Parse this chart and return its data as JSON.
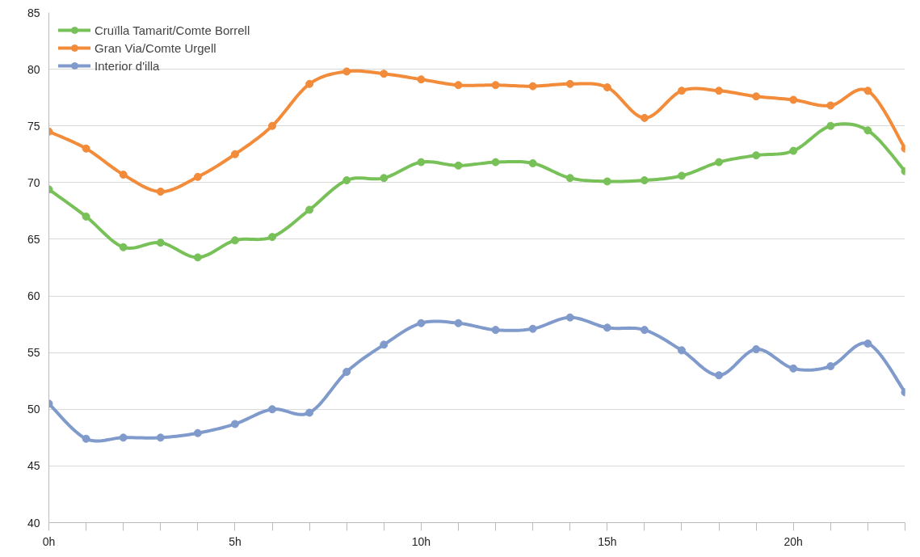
{
  "chart_data": {
    "type": "line",
    "x": [
      0,
      1,
      2,
      3,
      4,
      5,
      6,
      7,
      8,
      9,
      10,
      11,
      12,
      13,
      14,
      15,
      16,
      17,
      18,
      19,
      20,
      21,
      22,
      23
    ],
    "series": [
      {
        "name": "Cruïlla Tamarit/Comte Borrell",
        "color": "#77c158",
        "values": [
          69.4,
          67.0,
          64.3,
          64.7,
          63.4,
          64.9,
          65.2,
          67.6,
          70.2,
          70.4,
          71.8,
          71.5,
          71.8,
          71.7,
          70.4,
          70.1,
          70.2,
          70.6,
          71.8,
          72.4,
          72.8,
          75.0,
          74.6,
          71.0
        ]
      },
      {
        "name": "Gran Via/Comte Urgell",
        "color": "#f28b3a",
        "values": [
          74.5,
          73.0,
          70.7,
          69.2,
          70.5,
          72.5,
          75.0,
          78.7,
          79.8,
          79.6,
          79.1,
          78.6,
          78.6,
          78.5,
          78.7,
          78.4,
          75.7,
          78.1,
          78.1,
          77.6,
          77.3,
          76.8,
          78.1,
          73.0
        ]
      },
      {
        "name": "Interior d'illa",
        "color": "#7f9acb",
        "values": [
          50.5,
          47.4,
          47.5,
          47.5,
          47.9,
          48.7,
          50.0,
          49.7,
          53.3,
          55.7,
          57.6,
          57.6,
          57.0,
          57.1,
          58.1,
          57.2,
          57.0,
          55.2,
          53.0,
          55.3,
          53.6,
          53.8,
          55.8,
          51.5
        ]
      }
    ],
    "xlim": [
      0,
      23
    ],
    "xticks": [
      {
        "value": 0,
        "label": "0h"
      },
      {
        "value": 1,
        "label": null
      },
      {
        "value": 2,
        "label": null
      },
      {
        "value": 3,
        "label": null
      },
      {
        "value": 4,
        "label": null
      },
      {
        "value": 5,
        "label": "5h"
      },
      {
        "value": 6,
        "label": null
      },
      {
        "value": 7,
        "label": null
      },
      {
        "value": 8,
        "label": null
      },
      {
        "value": 9,
        "label": null
      },
      {
        "value": 10,
        "label": "10h"
      },
      {
        "value": 11,
        "label": null
      },
      {
        "value": 12,
        "label": null
      },
      {
        "value": 13,
        "label": null
      },
      {
        "value": 14,
        "label": null
      },
      {
        "value": 15,
        "label": "15h"
      },
      {
        "value": 16,
        "label": null
      },
      {
        "value": 17,
        "label": null
      },
      {
        "value": 18,
        "label": null
      },
      {
        "value": 19,
        "label": null
      },
      {
        "value": 20,
        "label": "20h"
      },
      {
        "value": 21,
        "label": null
      },
      {
        "value": 22,
        "label": null
      },
      {
        "value": 23,
        "label": null
      }
    ],
    "ylim": [
      40,
      85
    ],
    "yticks": [
      40,
      45,
      50,
      55,
      60,
      65,
      70,
      75,
      80,
      85
    ],
    "grid": "y",
    "legend": "top left",
    "marker": "circle",
    "line_style": "solid"
  }
}
